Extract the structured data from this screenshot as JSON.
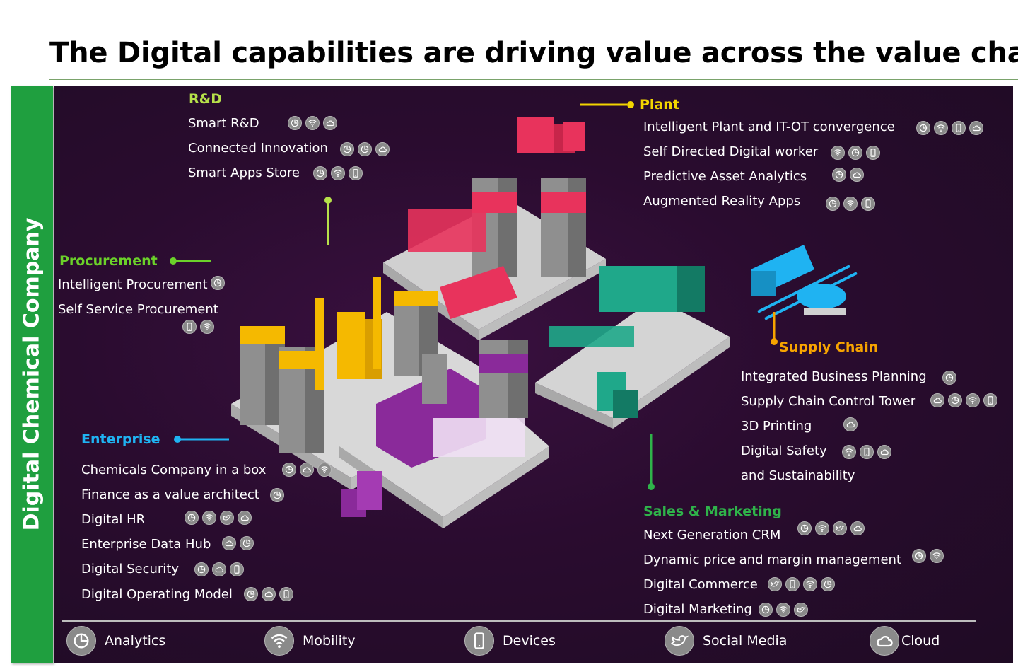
{
  "title": "The Digital capabilities are driving value across the value chain",
  "side_label": "Digital Chemical Company",
  "colors": {
    "band": "#1f9f3f",
    "rd": "#b6e04a",
    "plant": "#f2d500",
    "procurement": "#6bd12a",
    "enterprise": "#1fb3f2",
    "supply": "#f7a400",
    "sales": "#2fb34a"
  },
  "sections": {
    "rd": {
      "label": "R&D",
      "items": [
        {
          "text": "Smart R&D",
          "icons": [
            "analytics-icon",
            "mobility-icon",
            "cloud-icon"
          ]
        },
        {
          "text": "Connected Innovation",
          "icons": [
            "analytics-icon",
            "analytics-icon",
            "cloud-icon"
          ]
        },
        {
          "text": "Smart Apps Store",
          "icons": [
            "analytics-icon",
            "mobility-icon",
            "devices-icon"
          ]
        }
      ]
    },
    "plant": {
      "label": "Plant",
      "items": [
        {
          "text": "Intelligent Plant and IT-OT convergence",
          "icons": [
            "analytics-icon",
            "mobility-icon",
            "devices-icon",
            "cloud-icon"
          ]
        },
        {
          "text": "Self Directed Digital worker",
          "icons": [
            "mobility-icon",
            "analytics-icon",
            "devices-icon"
          ]
        },
        {
          "text": "Predictive Asset Analytics",
          "icons": [
            "analytics-icon",
            "cloud-icon"
          ]
        },
        {
          "text": "Augmented Reality Apps",
          "icons": [
            "analytics-icon",
            "mobility-icon",
            "devices-icon"
          ]
        }
      ]
    },
    "procurement": {
      "label": "Procurement",
      "items": [
        {
          "text": "Intelligent Procurement",
          "icons": [
            "analytics-icon"
          ]
        },
        {
          "text": "Self Service Procurement",
          "icons": [
            "devices-icon",
            "mobility-icon"
          ]
        }
      ]
    },
    "enterprise": {
      "label": "Enterprise",
      "items": [
        {
          "text": "Chemicals Company in a box",
          "icons": [
            "analytics-icon",
            "cloud-icon",
            "mobility-icon"
          ]
        },
        {
          "text": "Finance as a value architect",
          "icons": [
            "analytics-icon"
          ]
        },
        {
          "text": "Digital HR",
          "icons": [
            "analytics-icon",
            "mobility-icon",
            "social-media-icon",
            "cloud-icon"
          ]
        },
        {
          "text": "Enterprise Data Hub",
          "icons": [
            "cloud-icon",
            "analytics-icon"
          ]
        },
        {
          "text": "Digital Security",
          "icons": [
            "analytics-icon",
            "cloud-icon",
            "devices-icon"
          ]
        },
        {
          "text": "Digital Operating Model",
          "icons": [
            "analytics-icon",
            "cloud-icon",
            "devices-icon"
          ]
        }
      ]
    },
    "supply": {
      "label": "Supply Chain",
      "items": [
        {
          "text": "Integrated Business Planning",
          "icons": [
            "analytics-icon"
          ]
        },
        {
          "text": "Supply Chain Control Tower",
          "icons": [
            "cloud-icon",
            "analytics-icon",
            "mobility-icon",
            "devices-icon"
          ]
        },
        {
          "text": "3D Printing",
          "icons": [
            "cloud-icon"
          ]
        },
        {
          "text": "Digital Safety",
          "icons": [
            "mobility-icon",
            "devices-icon",
            "cloud-icon"
          ]
        },
        {
          "text": "and Sustainability",
          "icons": []
        }
      ]
    },
    "sales": {
      "label": "Sales & Marketing",
      "items": [
        {
          "text": "Next Generation CRM",
          "icons": [
            "analytics-icon",
            "mobility-icon",
            "social-media-icon",
            "cloud-icon"
          ]
        },
        {
          "text": "Dynamic price and margin management",
          "icons": [
            "analytics-icon",
            "mobility-icon"
          ]
        },
        {
          "text": "Digital Commerce",
          "icons": [
            "social-media-icon",
            "devices-icon",
            "mobility-icon",
            "analytics-icon"
          ]
        },
        {
          "text": "Digital Marketing",
          "icons": [
            "analytics-icon",
            "mobility-icon",
            "social-media-icon"
          ]
        }
      ]
    }
  },
  "legend": [
    {
      "label": "Analytics",
      "icon": "analytics-icon"
    },
    {
      "label": "Mobility",
      "icon": "mobility-icon"
    },
    {
      "label": "Devices",
      "icon": "devices-icon"
    },
    {
      "label": "Social Media",
      "icon": "social-media-icon"
    },
    {
      "label": "Cloud",
      "icon": "cloud-icon"
    }
  ]
}
